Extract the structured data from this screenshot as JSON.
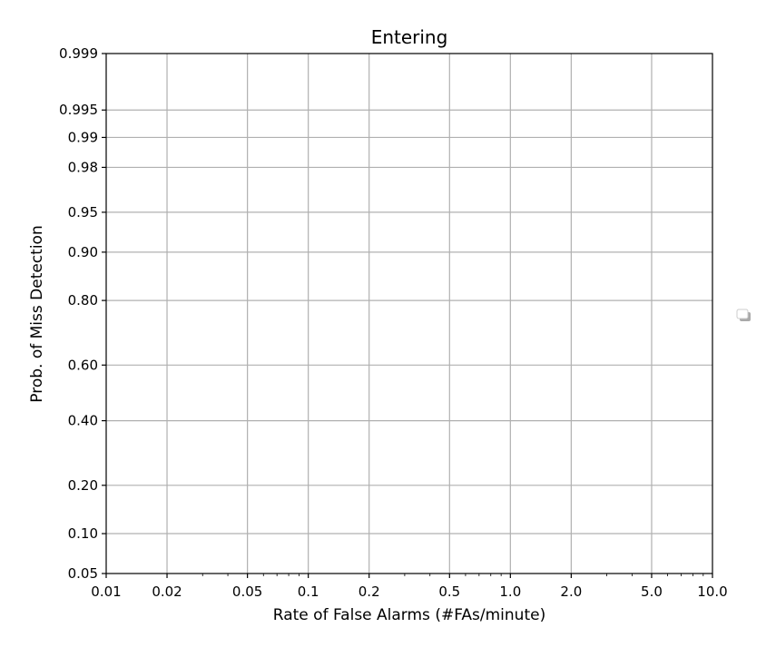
{
  "chart_data": {
    "type": "line",
    "title": "Entering",
    "xlabel": "Rate of False Alarms (#FAs/minute)",
    "ylabel": "Prob. of Miss Detection",
    "x_scale": "log",
    "y_scale": "normal-probability",
    "xlim": [
      0.01,
      10.0
    ],
    "ylim": [
      0.05,
      0.999
    ],
    "grid": true,
    "x_ticks": [
      {
        "value": 0.01,
        "label": "0.01"
      },
      {
        "value": 0.02,
        "label": "0.02"
      },
      {
        "value": 0.05,
        "label": "0.05"
      },
      {
        "value": 0.1,
        "label": "0.1"
      },
      {
        "value": 0.2,
        "label": "0.2"
      },
      {
        "value": 0.5,
        "label": "0.5"
      },
      {
        "value": 1.0,
        "label": "1.0"
      },
      {
        "value": 2.0,
        "label": "2.0"
      },
      {
        "value": 5.0,
        "label": "5.0"
      },
      {
        "value": 10.0,
        "label": "10.0"
      }
    ],
    "y_ticks": [
      {
        "value": 0.05,
        "label": "0.05"
      },
      {
        "value": 0.1,
        "label": "0.10"
      },
      {
        "value": 0.2,
        "label": "0.20"
      },
      {
        "value": 0.4,
        "label": "0.40"
      },
      {
        "value": 0.6,
        "label": "0.60"
      },
      {
        "value": 0.8,
        "label": "0.80"
      },
      {
        "value": 0.9,
        "label": "0.90"
      },
      {
        "value": 0.95,
        "label": "0.95"
      },
      {
        "value": 0.98,
        "label": "0.98"
      },
      {
        "value": 0.99,
        "label": "0.99"
      },
      {
        "value": 0.995,
        "label": "0.995"
      },
      {
        "value": 0.999,
        "label": "0.999"
      }
    ],
    "series": [],
    "legend": {
      "location": "outside-right",
      "entries": []
    },
    "colors": {
      "grid": "#b0b0b0",
      "axes": "#000000",
      "background": "#ffffff"
    }
  }
}
